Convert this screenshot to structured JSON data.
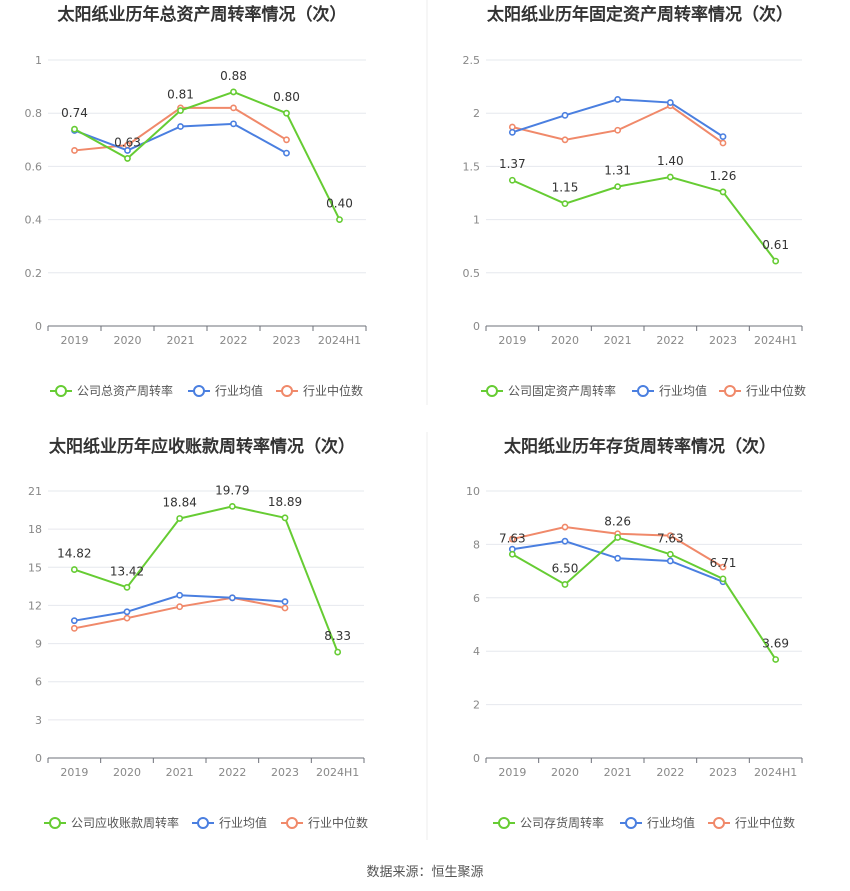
{
  "footer": {
    "source": "数据来源：恒生聚源"
  },
  "colors": {
    "company": "#66cc33",
    "avg": "#4a7fe0",
    "median": "#f0896a"
  },
  "chart_data": [
    {
      "id": "total-asset-turnover",
      "type": "line",
      "title": "太阳纸业历年总资产周转率情况（次）",
      "categories": [
        "2019",
        "2020",
        "2021",
        "2022",
        "2023",
        "2024H1"
      ],
      "ylim": [
        0,
        1
      ],
      "yticks": [
        "0",
        "0.2",
        "0.4",
        "0.6",
        "0.8",
        "1"
      ],
      "ytick_values": [
        0,
        0.2,
        0.4,
        0.6,
        0.8,
        1
      ],
      "grid": true,
      "legend_position": "bottom",
      "series": [
        {
          "name": "公司总资产周转率",
          "role": "company",
          "values": [
            0.74,
            0.63,
            0.81,
            0.88,
            0.8,
            0.4
          ],
          "labels": [
            "0.74",
            "0.63",
            "0.81",
            "0.88",
            "0.80",
            "0.40"
          ]
        },
        {
          "name": "行业均值",
          "role": "avg",
          "values": [
            0.735,
            0.66,
            0.75,
            0.76,
            0.65,
            null
          ]
        },
        {
          "name": "行业中位数",
          "role": "median",
          "values": [
            0.66,
            0.68,
            0.82,
            0.82,
            0.7,
            null
          ]
        }
      ]
    },
    {
      "id": "fixed-asset-turnover",
      "type": "line",
      "title": "太阳纸业历年固定资产周转率情况（次）",
      "categories": [
        "2019",
        "2020",
        "2021",
        "2022",
        "2023",
        "2024H1"
      ],
      "ylim": [
        0,
        2.5
      ],
      "yticks": [
        "0",
        "0.5",
        "1",
        "1.5",
        "2",
        "2.5"
      ],
      "ytick_values": [
        0,
        0.5,
        1,
        1.5,
        2,
        2.5
      ],
      "grid": true,
      "legend_position": "bottom",
      "series": [
        {
          "name": "公司固定资产周转率",
          "role": "company",
          "values": [
            1.37,
            1.15,
            1.31,
            1.4,
            1.26,
            0.61
          ],
          "labels": [
            "1.37",
            "1.15",
            "1.31",
            "1.40",
            "1.26",
            "0.61"
          ]
        },
        {
          "name": "行业均值",
          "role": "avg",
          "values": [
            1.82,
            1.98,
            2.13,
            2.1,
            1.78,
            null
          ]
        },
        {
          "name": "行业中位数",
          "role": "median",
          "values": [
            1.87,
            1.75,
            1.84,
            2.07,
            1.72,
            null
          ]
        }
      ]
    },
    {
      "id": "receivables-turnover",
      "type": "line",
      "title": "太阳纸业历年应收账款周转率情况（次）",
      "categories": [
        "2019",
        "2020",
        "2021",
        "2022",
        "2023",
        "2024H1"
      ],
      "ylim": [
        0,
        21
      ],
      "yticks": [
        "0",
        "3",
        "6",
        "9",
        "12",
        "15",
        "18",
        "21"
      ],
      "ytick_values": [
        0,
        3,
        6,
        9,
        12,
        15,
        18,
        21
      ],
      "grid": true,
      "legend_position": "bottom",
      "series": [
        {
          "name": "公司应收账款周转率",
          "role": "company",
          "values": [
            14.82,
            13.42,
            18.84,
            19.79,
            18.89,
            8.33
          ],
          "labels": [
            "14.82",
            "13.42",
            "18.84",
            "19.79",
            "18.89",
            "8.33"
          ]
        },
        {
          "name": "行业均值",
          "role": "avg",
          "values": [
            10.8,
            11.5,
            12.8,
            12.6,
            12.3,
            null
          ]
        },
        {
          "name": "行业中位数",
          "role": "median",
          "values": [
            10.2,
            11.0,
            11.9,
            12.6,
            11.8,
            null
          ]
        }
      ]
    },
    {
      "id": "inventory-turnover",
      "type": "line",
      "title": "太阳纸业历年存货周转率情况（次）",
      "categories": [
        "2019",
        "2020",
        "2021",
        "2022",
        "2023",
        "2024H1"
      ],
      "ylim": [
        0,
        10
      ],
      "yticks": [
        "0",
        "2",
        "4",
        "6",
        "8",
        "10"
      ],
      "ytick_values": [
        0,
        2,
        4,
        6,
        8,
        10
      ],
      "grid": true,
      "legend_position": "bottom",
      "series": [
        {
          "name": "公司存货周转率",
          "role": "company",
          "values": [
            7.63,
            6.5,
            8.26,
            7.63,
            6.71,
            3.69
          ],
          "labels": [
            "7.63",
            "6.50",
            "8.26",
            "7.63",
            "6.71",
            "3.69"
          ]
        },
        {
          "name": "行业均值",
          "role": "avg",
          "values": [
            7.82,
            8.12,
            7.48,
            7.38,
            6.6,
            null
          ]
        },
        {
          "name": "行业中位数",
          "role": "median",
          "values": [
            8.2,
            8.65,
            8.4,
            8.33,
            7.15,
            null
          ]
        }
      ]
    }
  ]
}
